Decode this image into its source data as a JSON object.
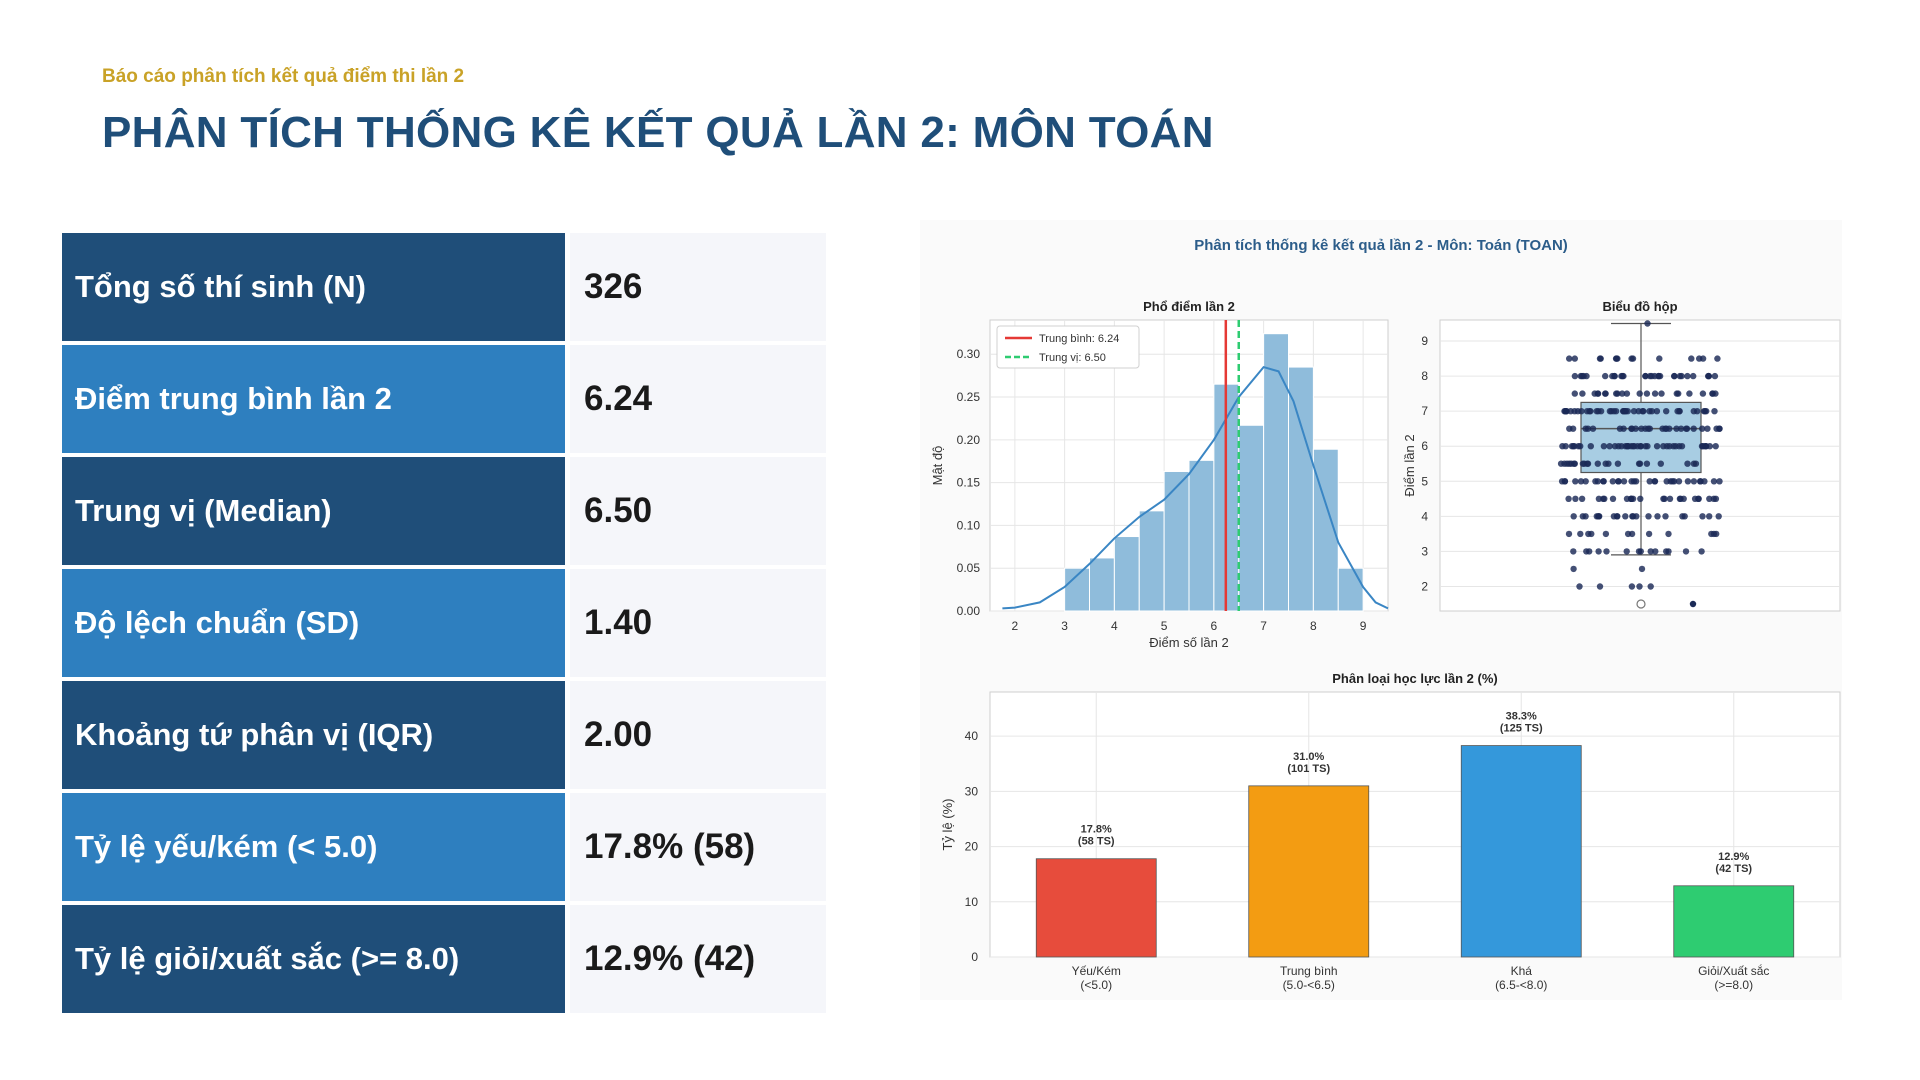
{
  "header": {
    "subtitle": "Báo cáo phân tích kết quả điểm thi lần 2",
    "title": "PHÂN TÍCH THỐNG KÊ KẾT QUẢ LẦN 2: MÔN TOÁN"
  },
  "stats": [
    {
      "label": "Tổng số thí sinh (N)",
      "value": "326"
    },
    {
      "label": "Điểm trung bình lần 2",
      "value": "6.24"
    },
    {
      "label": "Trung vị (Median)",
      "value": "6.50"
    },
    {
      "label": "Độ lệch chuẩn (SD)",
      "value": "1.40"
    },
    {
      "label": "Khoảng tứ phân vị (IQR)",
      "value": "2.00"
    },
    {
      "label": "Tỷ lệ yếu/kém (< 5.0)",
      "value": "17.8% (58)"
    },
    {
      "label": "Tỷ lệ giỏi/xuất sắc (>= 8.0)",
      "value": "12.9% (42)"
    }
  ],
  "figure_title": "Phân tích thống kê kết quả lần 2 - Môn: Toán (TOAN)",
  "colors": {
    "dark_blue": "#1f4e79",
    "mid_blue": "#2e7fbf",
    "gold": "#c9a227",
    "hist_fill": "#8fbcdb",
    "kde_line": "#3a86c4",
    "mean_line": "#e53935",
    "median_line": "#2ecc71"
  },
  "chart_data": [
    {
      "type": "histogram",
      "title": "Phổ điểm lần 2",
      "xlabel": "Điểm số lần 2",
      "ylabel": "Mật độ",
      "xlim": [
        1.5,
        9.5
      ],
      "ylim": [
        0,
        0.34
      ],
      "xticks": [
        "2",
        "3",
        "4",
        "5",
        "6",
        "7",
        "8",
        "9"
      ],
      "yticks": [
        "0.00",
        "0.05",
        "0.10",
        "0.15",
        "0.20",
        "0.25",
        "0.30"
      ],
      "bins": [
        [
          3.0,
          3.5,
          0.05
        ],
        [
          3.5,
          4.0,
          0.062
        ],
        [
          4.0,
          4.5,
          0.087
        ],
        [
          4.5,
          5.0,
          0.117
        ],
        [
          5.0,
          5.5,
          0.163
        ],
        [
          5.5,
          6.0,
          0.176
        ],
        [
          6.0,
          6.5,
          0.265
        ],
        [
          6.5,
          7.0,
          0.217
        ],
        [
          7.0,
          7.5,
          0.324
        ],
        [
          7.5,
          8.0,
          0.285
        ],
        [
          8.0,
          8.5,
          0.189
        ],
        [
          8.5,
          9.0,
          0.05
        ]
      ],
      "kde": [
        [
          1.75,
          0.003
        ],
        [
          2.0,
          0.004
        ],
        [
          2.5,
          0.01
        ],
        [
          3.0,
          0.028
        ],
        [
          3.5,
          0.055
        ],
        [
          4.0,
          0.085
        ],
        [
          4.5,
          0.11
        ],
        [
          5.0,
          0.13
        ],
        [
          5.5,
          0.16
        ],
        [
          6.0,
          0.2
        ],
        [
          6.5,
          0.25
        ],
        [
          7.0,
          0.285
        ],
        [
          7.3,
          0.28
        ],
        [
          7.6,
          0.245
        ],
        [
          8.0,
          0.17
        ],
        [
          8.5,
          0.08
        ],
        [
          9.0,
          0.028
        ],
        [
          9.25,
          0.01
        ],
        [
          9.5,
          0.003
        ]
      ],
      "mean": 6.24,
      "median": 6.5,
      "legend": [
        "Trung bình: 6.24",
        "Trung vị: 6.50"
      ],
      "legend_position": "top-left",
      "grid": true
    },
    {
      "type": "boxplot",
      "title": "Biểu đồ hộp",
      "ylabel": "Điểm lần 2",
      "ylim": [
        1.3,
        9.6
      ],
      "yticks": [
        "2",
        "3",
        "4",
        "5",
        "6",
        "7",
        "8",
        "9"
      ],
      "q1": 5.25,
      "median": 6.5,
      "q3": 7.25,
      "whisker_low": 2.9,
      "whisker_high": 9.5,
      "outliers": [
        1.5
      ],
      "grid": true
    },
    {
      "type": "bar",
      "title": "Phân loại học lực lần 2 (%)",
      "ylabel": "Tỷ lệ (%)",
      "ylim": [
        0,
        48
      ],
      "yticks": [
        "0",
        "10",
        "20",
        "30",
        "40"
      ],
      "categories": [
        [
          "Yếu/Kém",
          "(<5.0)"
        ],
        [
          "Trung bình",
          "(5.0-<6.5)"
        ],
        [
          "Khá",
          "(6.5-<8.0)"
        ],
        [
          "Giỏi/Xuất sắc",
          "(>=8.0)"
        ]
      ],
      "values": [
        17.8,
        31.0,
        38.3,
        12.9
      ],
      "labels": [
        [
          "17.8%",
          "(58 TS)"
        ],
        [
          "31.0%",
          "(101 TS)"
        ],
        [
          "38.3%",
          "(125 TS)"
        ],
        [
          "12.9%",
          "(42 TS)"
        ]
      ],
      "colors": [
        "#e74c3c",
        "#f39c12",
        "#3498db",
        "#2ecc71"
      ],
      "grid": true
    }
  ]
}
